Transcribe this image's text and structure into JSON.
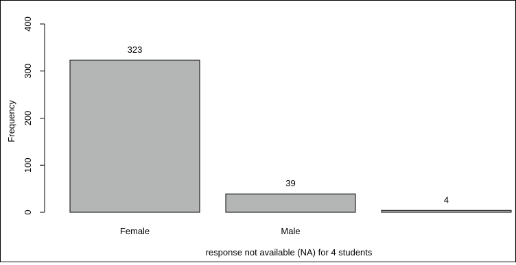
{
  "chart_data": {
    "type": "bar",
    "categories": [
      "Female",
      "Male",
      ""
    ],
    "values": [
      323,
      39,
      4
    ],
    "value_labels": [
      "323",
      "39",
      "4"
    ],
    "ylabel": "Frequency",
    "xlabel": "response not available (NA) for 4 students",
    "title": "",
    "ylim": [
      0,
      400
    ],
    "yticks": [
      0,
      100,
      200,
      300,
      400
    ],
    "grid": false,
    "legend": "none",
    "bar_fill": "#b3b6b5",
    "bar_stroke": "#000000"
  }
}
